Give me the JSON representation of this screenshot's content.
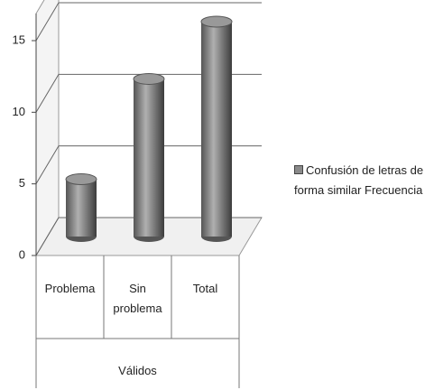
{
  "chart_data": {
    "type": "bar",
    "style": "3d-cylinder",
    "categories": [
      "Problema",
      "Sin problema",
      "Total"
    ],
    "group_label": "Válidos",
    "series": [
      {
        "name": "Confusión de letras de forma similar Frecuencia",
        "color": "#8a8a8a",
        "values": [
          4,
          11,
          15
        ]
      }
    ],
    "ylim": [
      0,
      15
    ],
    "yticks": [
      0,
      5,
      10,
      15
    ],
    "grid": true,
    "legend": "right"
  }
}
